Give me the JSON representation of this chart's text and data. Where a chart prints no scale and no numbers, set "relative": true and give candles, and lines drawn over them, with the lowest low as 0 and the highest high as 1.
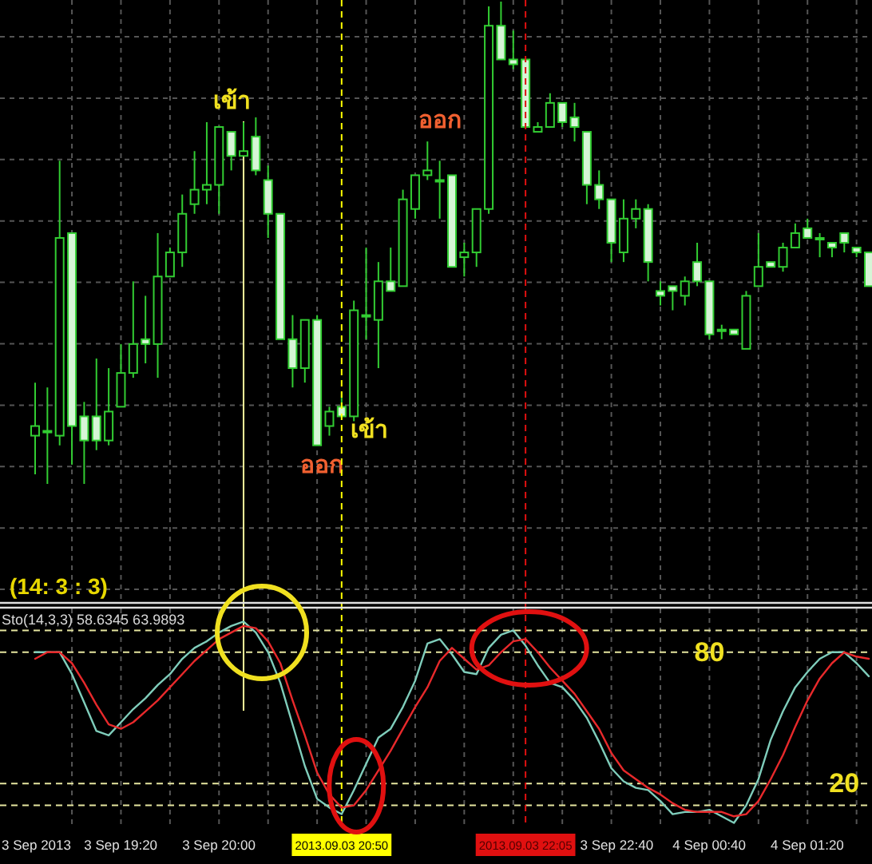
{
  "chart_data": [
    {
      "type": "candlestick",
      "relative": true,
      "color": "#32cd32",
      "grid": true,
      "tick_labels": false,
      "categories": [
        null,
        null,
        null,
        null,
        null,
        null,
        null,
        null,
        null,
        null,
        null,
        null,
        null,
        null,
        null,
        null,
        null,
        null,
        null,
        null,
        null,
        null,
        null,
        null,
        null,
        null,
        null,
        null,
        null,
        null,
        null,
        null,
        null,
        null,
        null,
        null,
        null,
        null,
        null,
        null,
        null,
        null,
        null,
        null,
        null,
        null,
        null,
        null,
        null,
        null,
        null,
        null,
        null,
        null,
        null,
        null,
        null,
        null,
        null,
        null,
        null,
        null,
        null,
        null,
        null,
        null,
        null,
        null,
        null
      ],
      "ohlc": [
        [
          0.1,
          0.21,
          0.02,
          0.12
        ],
        [
          0.11,
          0.2,
          0,
          0.11
        ],
        [
          0.1,
          0.67,
          0.08,
          0.51
        ],
        [
          0.52,
          0.52,
          0.04,
          0.12
        ],
        [
          0.14,
          0.17,
          0,
          0.09
        ],
        [
          0.14,
          0.26,
          0.07,
          0.09
        ],
        [
          0.09,
          0.24,
          0.08,
          0.15
        ],
        [
          0.16,
          0.29,
          0.16,
          0.23
        ],
        [
          0.23,
          0.42,
          0.22,
          0.29
        ],
        [
          0.3,
          0.39,
          0.25,
          0.29
        ],
        [
          0.29,
          0.52,
          0.22,
          0.43
        ],
        [
          0.43,
          0.49,
          0.43,
          0.48
        ],
        [
          0.48,
          0.6,
          0.45,
          0.56
        ],
        [
          0.58,
          0.69,
          0.56,
          0.61
        ],
        [
          0.61,
          0.75,
          0.58,
          0.62
        ],
        [
          0.62,
          0.74,
          0.56,
          0.74
        ],
        [
          0.73,
          0.73,
          0.65,
          0.68
        ],
        [
          0.68,
          0.75,
          0.68,
          0.69
        ],
        [
          0.72,
          0.76,
          0.64,
          0.65
        ],
        [
          0.63,
          0.66,
          0.51,
          0.56
        ],
        [
          0.56,
          0.56,
          0.3,
          0.3
        ],
        [
          0.3,
          0.35,
          0.2,
          0.24
        ],
        [
          0.24,
          0.34,
          0.21,
          0.34
        ],
        [
          0.34,
          0.35,
          0.08,
          0.08
        ],
        [
          0.12,
          0.16,
          0.1,
          0.15
        ],
        [
          0.16,
          0.19,
          0.14,
          0.14
        ],
        [
          0.14,
          0.38,
          0.13,
          0.36
        ],
        [
          0.35,
          0.49,
          0.3,
          0.35
        ],
        [
          0.34,
          0.46,
          0.24,
          0.42
        ],
        [
          0.42,
          0.49,
          0.4,
          0.4
        ],
        [
          0.41,
          0.61,
          0.41,
          0.59
        ],
        [
          0.57,
          0.64,
          0.55,
          0.64
        ],
        [
          0.64,
          0.71,
          0.63,
          0.65
        ],
        [
          0.63,
          0.67,
          0.55,
          0.63
        ],
        [
          0.64,
          0.64,
          0.45,
          0.45
        ],
        [
          0.47,
          0.5,
          0.43,
          0.48
        ],
        [
          0.48,
          0.57,
          0.45,
          0.57
        ],
        [
          0.57,
          0.99,
          0.56,
          0.95
        ],
        [
          0.95,
          1,
          0.88,
          0.88
        ],
        [
          0.88,
          0.94,
          0.86,
          0.87
        ],
        [
          0.88,
          0.88,
          0.74,
          0.74
        ],
        [
          0.73,
          0.75,
          0.73,
          0.74
        ],
        [
          0.74,
          0.81,
          0.74,
          0.79
        ],
        [
          0.79,
          0.79,
          0.74,
          0.75
        ],
        [
          0.76,
          0.79,
          0.71,
          0.74
        ],
        [
          0.73,
          0.73,
          0.58,
          0.62
        ],
        [
          0.62,
          0.65,
          0.57,
          0.59
        ],
        [
          0.59,
          0.59,
          0.46,
          0.5
        ],
        [
          0.48,
          0.59,
          0.46,
          0.55
        ],
        [
          0.55,
          0.59,
          0.53,
          0.57
        ],
        [
          0.57,
          0.58,
          0.42,
          0.46
        ],
        [
          0.4,
          0.42,
          0.37,
          0.39
        ],
        [
          0.41,
          0.41,
          0.36,
          0.4
        ],
        [
          0.39,
          0.43,
          0.37,
          0.42
        ],
        [
          0.46,
          0.5,
          0.41,
          0.42
        ],
        [
          0.42,
          0.42,
          0.3,
          0.31
        ],
        [
          0.32,
          0.33,
          0.3,
          0.32
        ],
        [
          0.32,
          0.32,
          0.31,
          0.31
        ],
        [
          0.28,
          0.4,
          0.28,
          0.39
        ],
        [
          0.41,
          0.52,
          0.41,
          0.45
        ],
        [
          0.46,
          0.46,
          0.45,
          0.45
        ],
        [
          0.45,
          0.5,
          0.44,
          0.49
        ],
        [
          0.49,
          0.54,
          0.49,
          0.52
        ],
        [
          0.53,
          0.55,
          0.51,
          0.51
        ],
        [
          0.51,
          0.52,
          0.47,
          0.51
        ],
        [
          0.5,
          0.5,
          0.47,
          0.49
        ],
        [
          0.52,
          0.52,
          0.48,
          0.5
        ],
        [
          0.49,
          0.49,
          0.47,
          0.48
        ],
        [
          0.48,
          0.48,
          0.41,
          0.41
        ]
      ],
      "annotations": [
        "เข้า",
        "ออก",
        "ออก",
        "เข้า"
      ]
    },
    {
      "type": "line",
      "title": "Sto(14,3,3) 58.6345 63.9893",
      "grid": "x",
      "tick_labels": "x",
      "ylim": [
        0,
        100
      ],
      "categories": [
        "3 Sep 2013",
        null,
        null,
        null,
        null,
        null,
        null,
        "3 Sep 19:20",
        null,
        null,
        null,
        null,
        null,
        null,
        null,
        "3 Sep 20:00",
        null,
        null,
        null,
        null,
        null,
        null,
        null,
        null,
        null,
        "2013.09.03 20:50",
        null,
        null,
        null,
        null,
        null,
        null,
        null,
        null,
        null,
        null,
        null,
        null,
        null,
        null,
        "2013.09.03 22:05",
        null,
        null,
        null,
        null,
        null,
        null,
        "3 Sep 22:40",
        null,
        null,
        null,
        null,
        null,
        null,
        null,
        "4 Sep 00:40",
        null,
        null,
        null,
        null,
        null,
        null,
        null,
        "4 Sep 01:20",
        null,
        null,
        null,
        null,
        null
      ],
      "series": [
        {
          "color": "#7fcdbb",
          "values": [
            80,
            80,
            80,
            70,
            57,
            44,
            42,
            48,
            54,
            59,
            65,
            70,
            77,
            82,
            85,
            89,
            92,
            94,
            89,
            80,
            66,
            47,
            28,
            13,
            9,
            6,
            17,
            29,
            41,
            45,
            55,
            67,
            84,
            86,
            79,
            71,
            70,
            82,
            88,
            90,
            83,
            74,
            66,
            64,
            58,
            50,
            39,
            27,
            21,
            18,
            17,
            12,
            6,
            7,
            7,
            8,
            5,
            2,
            10,
            22,
            40,
            53,
            64,
            71,
            77,
            80,
            80,
            75,
            69
          ]
        },
        {
          "color": "#e8292b",
          "values": [
            77,
            80,
            80,
            75,
            66,
            56,
            47,
            45,
            48,
            53,
            58,
            64,
            70,
            76,
            81,
            86,
            89,
            92,
            91,
            85,
            75,
            58,
            42,
            25,
            15,
            9,
            10,
            17,
            26,
            35,
            45,
            55,
            64,
            76,
            82,
            77,
            72,
            74,
            80,
            85,
            86,
            80,
            73,
            67,
            61,
            53,
            45,
            34,
            26,
            22,
            18,
            15,
            11,
            8,
            7,
            7,
            7,
            5,
            6,
            12,
            22,
            33,
            46,
            58,
            68,
            75,
            80,
            78,
            77
          ]
        }
      ],
      "ref_lines": [
        {
          "axis": "y",
          "value": 90,
          "color": "#e6e6a0",
          "line_style": "dashed"
        },
        {
          "axis": "y",
          "value": 80,
          "label": "80",
          "color": "#e6e6a0",
          "line_style": "dashed"
        },
        {
          "axis": "y",
          "value": 20,
          "label": "20",
          "color": "#e6e6a0",
          "line_style": "dashed"
        },
        {
          "axis": "y",
          "value": 10,
          "color": "#e6e6a0",
          "line_style": "dashed"
        },
        {
          "axis": "x",
          "value": "2013.09.03 20:50",
          "color": "#ffff00",
          "line_style": "dashed"
        },
        {
          "axis": "x",
          "value": "2013.09.03 22:05",
          "color": "#e01010",
          "line_style": "dashed"
        }
      ],
      "annotations": [
        "(14: 3 : 3)"
      ]
    }
  ]
}
